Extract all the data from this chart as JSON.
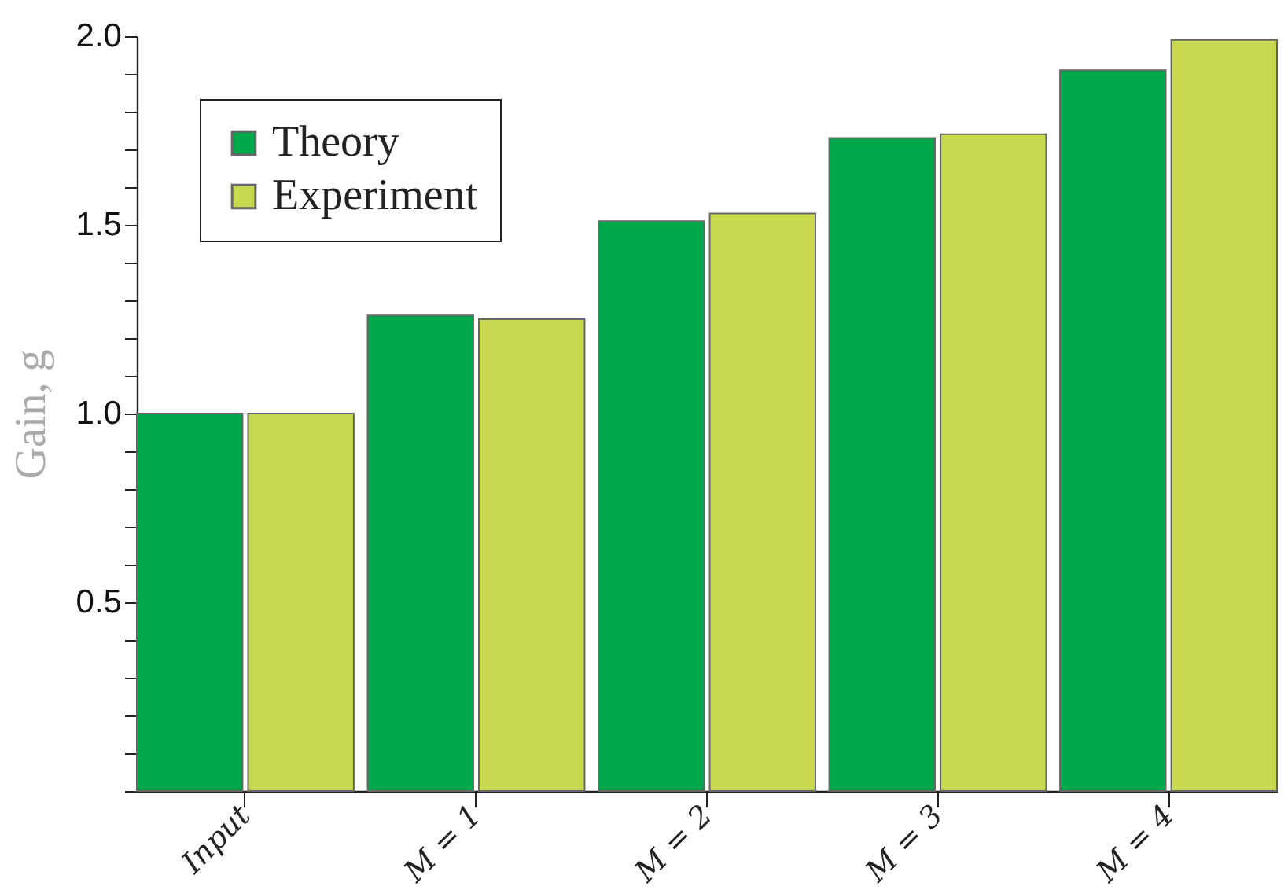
{
  "chart_data": {
    "type": "bar",
    "ylabel": "Gain, g",
    "categories": [
      "Input",
      "M = 1",
      "M = 2",
      "M = 3",
      "M = 4"
    ],
    "series": [
      {
        "name": "Theory",
        "color": "#00a84c",
        "values": [
          1.0,
          1.26,
          1.51,
          1.73,
          1.91
        ]
      },
      {
        "name": "Experiment",
        "color": "#c8d94f",
        "values": [
          1.0,
          1.25,
          1.53,
          1.74,
          1.99
        ]
      }
    ],
    "ylim": [
      0,
      2.0
    ],
    "yticks": [
      {
        "value": 0,
        "label": null
      },
      {
        "value": 0.1,
        "label": null
      },
      {
        "value": 0.2,
        "label": null
      },
      {
        "value": 0.3,
        "label": null
      },
      {
        "value": 0.4,
        "label": null
      },
      0.5,
      {
        "value": 0.6,
        "label": null
      },
      {
        "value": 0.7,
        "label": null
      },
      {
        "value": 0.8,
        "label": null
      },
      {
        "value": 0.9,
        "label": null
      },
      {
        "value": 1,
        "label": "1.0"
      },
      {
        "value": 1.1,
        "label": null
      },
      {
        "value": 1.2,
        "label": null
      },
      {
        "value": 1.3,
        "label": null
      },
      {
        "value": 1.4,
        "label": null
      },
      1.5,
      {
        "value": 1.6,
        "label": null
      },
      {
        "value": 1.7,
        "label": null
      },
      {
        "value": 1.8,
        "label": null
      },
      {
        "value": 1.9,
        "label": null
      },
      {
        "value": 2,
        "label": "2.0"
      }
    ],
    "grid": false,
    "legend": "top left"
  }
}
